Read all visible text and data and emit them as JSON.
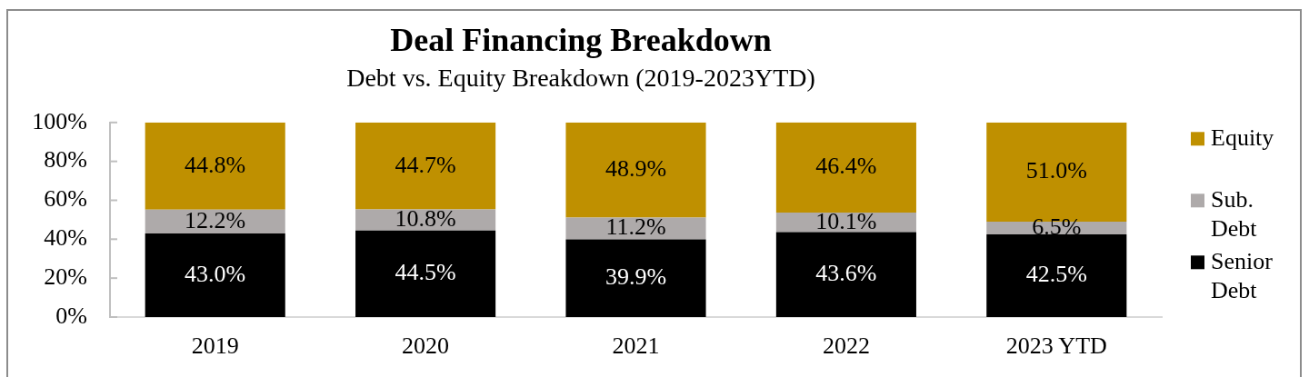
{
  "chart_data": {
    "type": "bar",
    "title": "Deal Financing Breakdown",
    "subtitle": "Debt vs. Equity Breakdown (2019-2023YTD)",
    "categories": [
      "2019",
      "2020",
      "2021",
      "2022",
      "2023 YTD"
    ],
    "stacked": true,
    "series": [
      {
        "name": "Senior Debt",
        "color": "#000000",
        "values": [
          43.0,
          44.5,
          39.9,
          43.6,
          42.5
        ],
        "value_labels": [
          "43.0%",
          "44.5%",
          "39.9%",
          "43.6%",
          "42.5%"
        ]
      },
      {
        "name": "Sub. Debt",
        "color": "#aeaaaa",
        "values": [
          12.2,
          10.8,
          11.2,
          10.1,
          6.5
        ],
        "value_labels": [
          "12.2%",
          "10.8%",
          "11.2%",
          "10.1%",
          "6.5%"
        ]
      },
      {
        "name": "Equity",
        "color": "#bf9000",
        "values": [
          44.8,
          44.7,
          48.9,
          46.4,
          51.0
        ],
        "value_labels": [
          "44.8%",
          "44.7%",
          "48.9%",
          "46.4%",
          "51.0%"
        ]
      }
    ],
    "ylim": [
      0,
      100
    ],
    "yticks": [
      {
        "value": 0,
        "label": "0%"
      },
      {
        "value": 20,
        "label": "20%"
      },
      {
        "value": 40,
        "label": "40%"
      },
      {
        "value": 60,
        "label": "60%"
      },
      {
        "value": 80,
        "label": "80%"
      },
      {
        "value": 100,
        "label": "100%"
      }
    ],
    "legend": "right"
  }
}
